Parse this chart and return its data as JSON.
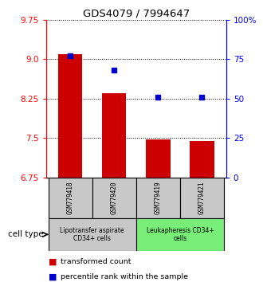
{
  "title": "GDS4079 / 7994647",
  "samples": [
    "GSM779418",
    "GSM779420",
    "GSM779419",
    "GSM779421"
  ],
  "transformed_counts": [
    9.1,
    8.35,
    7.47,
    7.44
  ],
  "percentile_ranks": [
    77,
    68,
    51,
    51
  ],
  "ylim_left": [
    6.75,
    9.75
  ],
  "yticks_left": [
    6.75,
    7.5,
    8.25,
    9.0,
    9.75
  ],
  "yticks_right": [
    0,
    25,
    50,
    75,
    100
  ],
  "bar_color": "#cc0000",
  "dot_color": "#0000cc",
  "bar_bottom": 6.75,
  "cell_types": [
    "Lipotransfer aspirate\nCD34+ cells",
    "Leukapheresis CD34+\ncells"
  ],
  "cell_type_groups": [
    0,
    0,
    1,
    1
  ],
  "group_bg_colors": [
    "#c8c8c8",
    "#78ee78"
  ],
  "sample_box_color": "#c8c8c8",
  "legend_red_label": "transformed count",
  "legend_blue_label": "percentile rank within the sample",
  "cell_type_label": "cell type"
}
